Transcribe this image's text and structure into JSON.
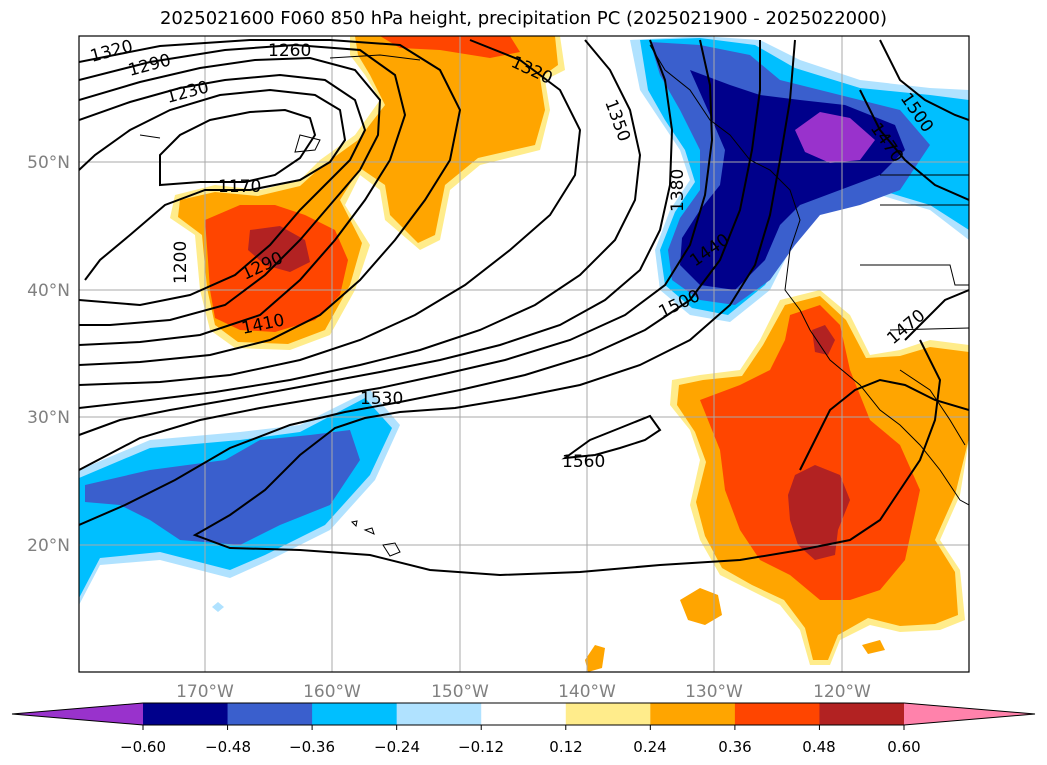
{
  "title": "2025021600 F060 850 hPa height, precipitation PC (2025021900 - 2025022000)",
  "latitude_labels": [
    "50°N",
    "40°N",
    "30°N",
    "20°N"
  ],
  "longitude_labels": [
    "170°W",
    "160°W",
    "150°W",
    "140°W",
    "130°W",
    "120°W"
  ],
  "contour_labels": [
    "1320",
    "1290",
    "1260",
    "1230",
    "1320",
    "1350",
    "1500",
    "1470",
    "1170",
    "1380",
    "1200",
    "1290",
    "1440",
    "1410",
    "1500",
    "1470",
    "1530",
    "1560"
  ],
  "colorbar": {
    "ticks": [
      "−0.60",
      "−0.48",
      "−0.36",
      "−0.24",
      "−0.12",
      "0.12",
      "0.24",
      "0.36",
      "0.48",
      "0.60"
    ],
    "colors": [
      "#9932cc",
      "#00008b",
      "#3a5fcd",
      "#00bfff",
      "#b0e2ff",
      "#ffffff",
      "#ffec8b",
      "#ffa500",
      "#ff4500",
      "#b22222",
      "#ff82ab"
    ]
  }
}
